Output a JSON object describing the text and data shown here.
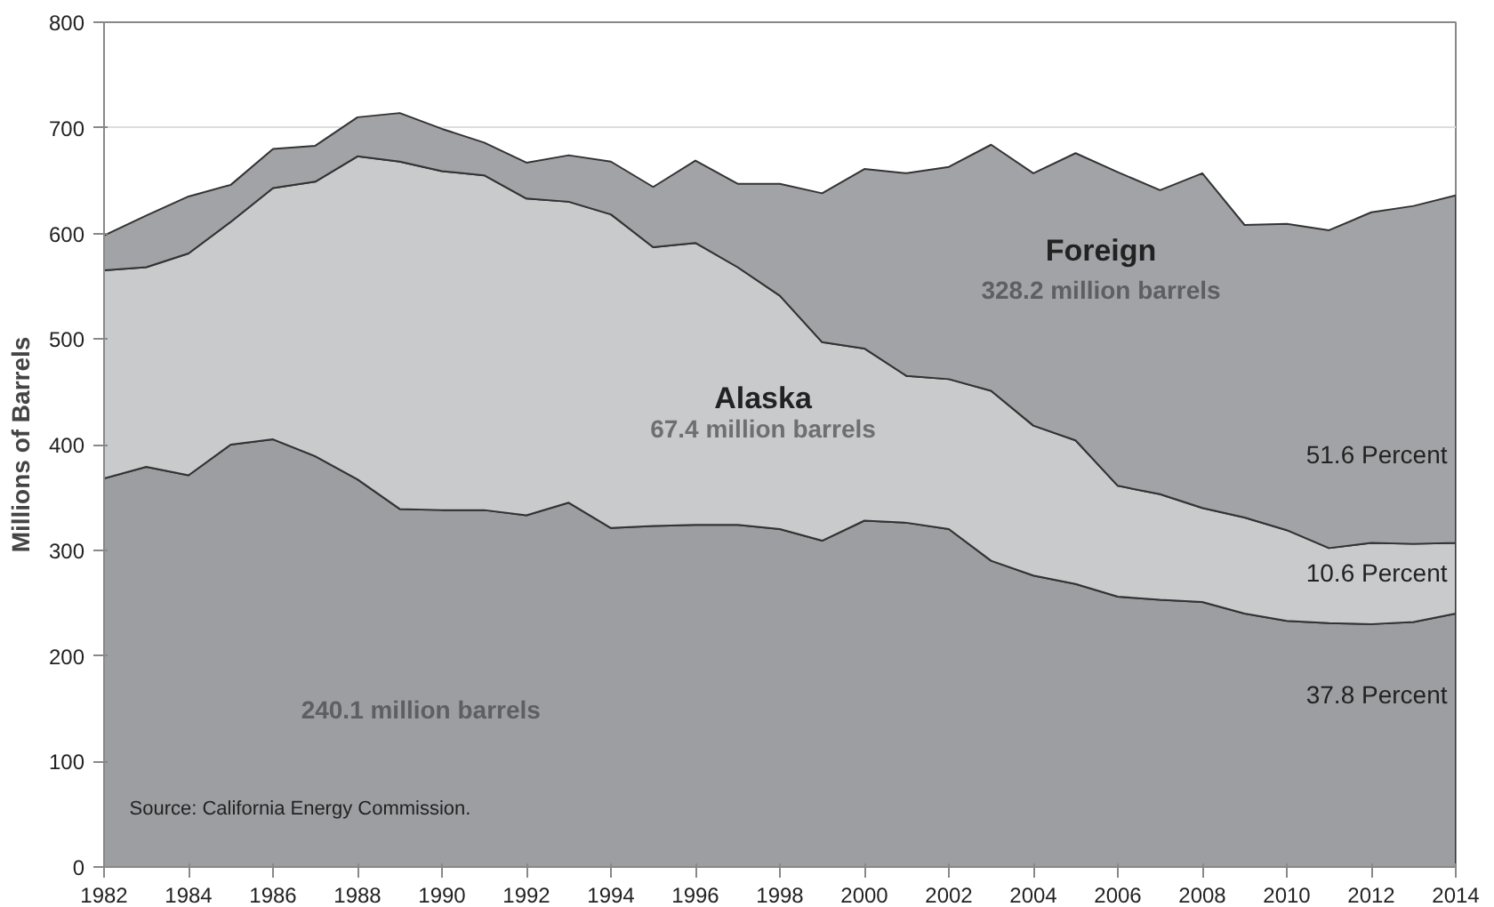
{
  "chart_data": {
    "type": "area",
    "stacked": true,
    "ylabel": "Millions of Barrels",
    "x": [
      1982,
      1983,
      1984,
      1985,
      1986,
      1987,
      1988,
      1989,
      1990,
      1991,
      1992,
      1993,
      1994,
      1995,
      1996,
      1997,
      1998,
      1999,
      2000,
      2001,
      2002,
      2003,
      2004,
      2005,
      2006,
      2007,
      2008,
      2009,
      2010,
      2011,
      2012,
      2013,
      2014
    ],
    "series": [
      {
        "color": "#9d9ea2",
        "values": [
          368,
          379,
          371,
          400,
          405,
          389,
          367,
          339,
          338,
          338,
          333,
          345,
          321,
          323,
          324,
          324,
          320,
          309,
          328,
          326,
          320,
          290,
          276,
          268,
          256,
          253,
          251,
          240,
          233,
          231,
          230,
          232,
          240
        ]
      },
      {
        "name": "Alaska",
        "color": "#c9cacc",
        "values": [
          197,
          189,
          210,
          211,
          238,
          260,
          306,
          329,
          321,
          317,
          300,
          285,
          297,
          264,
          267,
          244,
          221,
          188,
          163,
          139,
          142,
          161,
          142,
          136,
          105,
          100,
          89,
          91,
          86,
          71,
          77,
          74,
          67
        ]
      },
      {
        "name": "Foreign",
        "color": "#a2a3a7",
        "values": [
          33,
          49,
          54,
          35,
          37,
          34,
          37,
          46,
          40,
          31,
          34,
          44,
          50,
          57,
          78,
          79,
          106,
          141,
          170,
          192,
          201,
          233,
          239,
          272,
          297,
          288,
          317,
          277,
          290,
          301,
          313,
          320,
          329
        ]
      }
    ],
    "xlim": [
      1982,
      2014
    ],
    "xticks": [
      1982,
      1984,
      1986,
      1988,
      1990,
      1992,
      1994,
      1996,
      1998,
      2000,
      2002,
      2004,
      2006,
      2008,
      2010,
      2012,
      2014
    ],
    "ylim": [
      0,
      800
    ],
    "yticks": [
      0,
      100,
      200,
      300,
      400,
      500,
      600,
      700,
      800
    ],
    "grid": "y",
    "annotations": [
      "240.1 million barrels",
      "67.4 million barrels",
      "328.2 million barrels",
      "51.6 Percent",
      "10.6 Percent",
      "37.8 Percent",
      "Source: California Energy Commission."
    ]
  }
}
